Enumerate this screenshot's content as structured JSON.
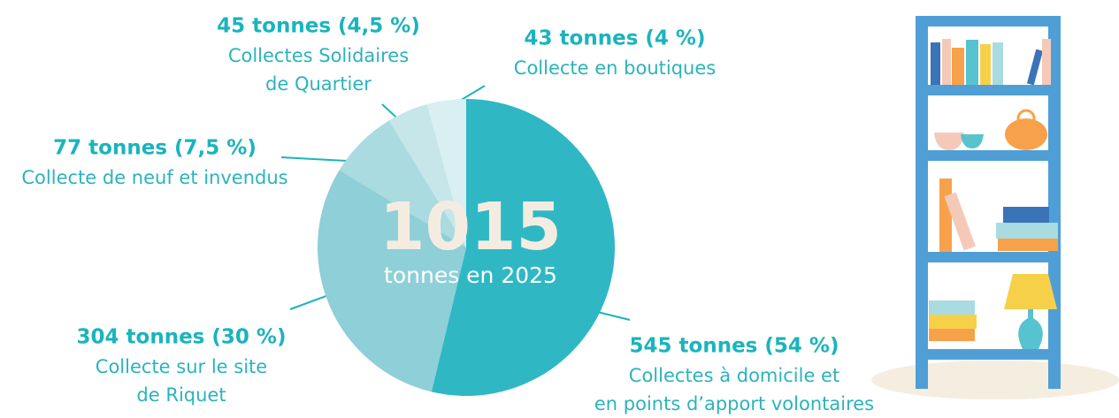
{
  "chart_data": {
    "type": "pie",
    "center_value": 1015,
    "center_label": "tonnes en 2025",
    "categories": [
      "Collectes à domicile et\nen points d’apport volontaires",
      "Collecte sur le site\nde Riquet",
      "Collecte de neuf et invendus",
      "Collectes Solidaires\nde Quartier",
      "Collecte en boutiques"
    ],
    "values": [
      545,
      304,
      77,
      45,
      43
    ],
    "value_labels": [
      "545 tonnes (54 %)",
      "304 tonnes (30 %)",
      "77 tonnes (7,5 %)",
      "45 tonnes (4,5 %)",
      "43 tonnes (4 %)"
    ],
    "colors": [
      "#2fb8c4",
      "#8ecfd8",
      "#a9dbe0",
      "#c6e6ea",
      "#d9eff2"
    ]
  }
}
